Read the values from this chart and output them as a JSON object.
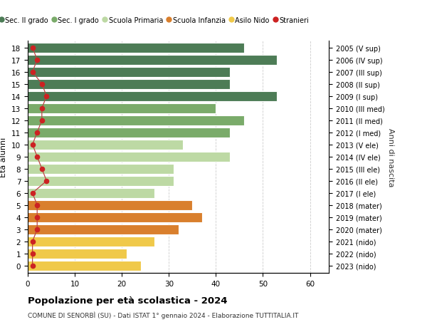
{
  "ages": [
    18,
    17,
    16,
    15,
    14,
    13,
    12,
    11,
    10,
    9,
    8,
    7,
    6,
    5,
    4,
    3,
    2,
    1,
    0
  ],
  "bar_values": [
    46,
    53,
    43,
    43,
    53,
    40,
    46,
    43,
    33,
    43,
    31,
    31,
    27,
    35,
    37,
    32,
    27,
    21,
    24
  ],
  "stranieri": [
    1,
    2,
    1,
    3,
    4,
    3,
    3,
    2,
    1,
    2,
    3,
    4,
    1,
    2,
    2,
    2,
    1,
    1,
    1
  ],
  "right_labels": [
    "2005 (V sup)",
    "2006 (IV sup)",
    "2007 (III sup)",
    "2008 (II sup)",
    "2009 (I sup)",
    "2010 (III med)",
    "2011 (II med)",
    "2012 (I med)",
    "2013 (V ele)",
    "2014 (IV ele)",
    "2015 (III ele)",
    "2016 (II ele)",
    "2017 (I ele)",
    "2018 (mater)",
    "2019 (mater)",
    "2020 (mater)",
    "2021 (nido)",
    "2022 (nido)",
    "2023 (nido)"
  ],
  "bar_colors": [
    "#4d7c56",
    "#4d7c56",
    "#4d7c56",
    "#4d7c56",
    "#4d7c56",
    "#7aab6a",
    "#7aab6a",
    "#7aab6a",
    "#bdd9a4",
    "#bdd9a4",
    "#bdd9a4",
    "#bdd9a4",
    "#bdd9a4",
    "#d97f2d",
    "#d97f2d",
    "#d97f2d",
    "#f0c94a",
    "#f0c94a",
    "#f0c94a"
  ],
  "legend_labels": [
    "Sec. II grado",
    "Sec. I grado",
    "Scuola Primaria",
    "Scuola Infanzia",
    "Asilo Nido",
    "Stranieri"
  ],
  "legend_colors": [
    "#4d7c56",
    "#7aab6a",
    "#bdd9a4",
    "#d97f2d",
    "#f0c94a",
    "#cc2222"
  ],
  "stranieri_color": "#cc2222",
  "stranieri_line_color": "#bb4444",
  "ylabel": "Età alunni",
  "right_ylabel": "Anni di nascita",
  "title": "Popolazione per età scolastica - 2024",
  "subtitle": "COMUNE DI SENORBÌ (SU) - Dati ISTAT 1° gennaio 2024 - Elaborazione TUTTITALIA.IT",
  "xlim": [
    0,
    64
  ],
  "xticks": [
    0,
    10,
    20,
    30,
    40,
    50,
    60
  ],
  "grid_color": "#cccccc"
}
